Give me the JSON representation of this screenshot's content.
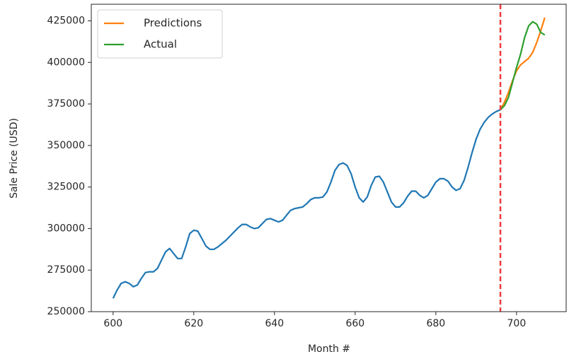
{
  "chart_data": {
    "type": "line",
    "xlabel": "Month #",
    "ylabel": "Sale Price (USD)",
    "xlim": [
      594.6,
      712.3
    ],
    "xticks": [
      600,
      620,
      640,
      660,
      680,
      700
    ],
    "ylim": [
      250000,
      435000
    ],
    "yticks": [
      250000,
      275000,
      300000,
      325000,
      350000,
      375000,
      400000,
      425000
    ],
    "legend": "upper left",
    "vline": {
      "x": 696,
      "color": "#ef3b3b",
      "style": "dashed"
    },
    "series": [
      {
        "color": "#1f77b4",
        "x": [
          600,
          601,
          602,
          603,
          604,
          605,
          606,
          607,
          608,
          609,
          610,
          611,
          612,
          613,
          614,
          615,
          616,
          617,
          618,
          619,
          620,
          621,
          622,
          623,
          624,
          625,
          626,
          627,
          628,
          629,
          630,
          631,
          632,
          633,
          634,
          635,
          636,
          637,
          638,
          639,
          640,
          641,
          642,
          643,
          644,
          645,
          646,
          647,
          648,
          649,
          650,
          651,
          652,
          653,
          654,
          655,
          656,
          657,
          658,
          659,
          660,
          661,
          662,
          663,
          664,
          665,
          666,
          667,
          668,
          669,
          670,
          671,
          672,
          673,
          674,
          675,
          676,
          677,
          678,
          679,
          680,
          681,
          682,
          683,
          684,
          685,
          686,
          687,
          688,
          689,
          690,
          691,
          692,
          693,
          694,
          695,
          696
        ],
        "values": [
          258000,
          263000,
          267000,
          268000,
          267000,
          265000,
          266000,
          270000,
          273500,
          274000,
          274000,
          276000,
          281000,
          286000,
          288000,
          285000,
          282000,
          282000,
          289000,
          297000,
          299000,
          298500,
          294000,
          289500,
          287500,
          287500,
          289000,
          291000,
          293000,
          295500,
          298000,
          300500,
          302500,
          302500,
          301000,
          300000,
          300500,
          303000,
          305500,
          306000,
          305000,
          304000,
          305000,
          308000,
          311000,
          312000,
          312500,
          313000,
          315000,
          317500,
          318500,
          318500,
          319000,
          322000,
          328000,
          335000,
          338500,
          339500,
          338000,
          333000,
          325000,
          318500,
          316000,
          319000,
          326000,
          331000,
          331500,
          328000,
          322000,
          316000,
          313000,
          313000,
          315500,
          319500,
          322500,
          322500,
          320000,
          318500,
          320000,
          324000,
          328000,
          330000,
          330000,
          328500,
          325000,
          323000,
          324000,
          329000,
          337000,
          346000,
          354000,
          360000,
          364000,
          367000,
          369000,
          370500,
          371500
        ]
      },
      {
        "name": "Predictions",
        "color": "#ff7f0e",
        "x": [
          696,
          697,
          698,
          699,
          700,
          701,
          702,
          703,
          704,
          705,
          706,
          707
        ],
        "values": [
          371500,
          376000,
          382000,
          389000,
          395000,
          398500,
          400500,
          402500,
          406000,
          412000,
          419000,
          427000
        ]
      },
      {
        "name": "Actual",
        "color": "#2ca02c",
        "x": [
          696,
          697,
          698,
          699,
          700,
          701,
          702,
          703,
          704,
          705,
          706,
          707
        ],
        "values": [
          371500,
          374000,
          379000,
          388000,
          397000,
          405000,
          415000,
          422000,
          424500,
          423000,
          418000,
          416500
        ]
      }
    ]
  }
}
